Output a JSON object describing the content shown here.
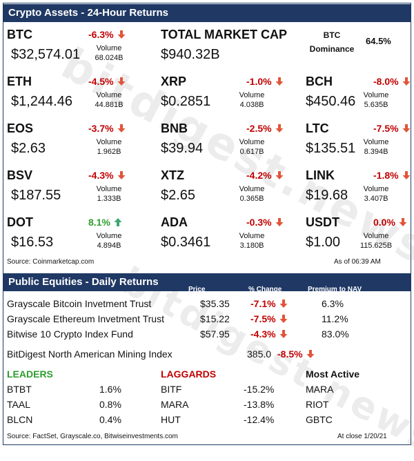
{
  "crypto": {
    "title": "Crypto Assets - 24-Hour Returns",
    "volume_label": "Volume",
    "colors": {
      "negative": "#c00000",
      "positive": "#2e9c2e",
      "band": "#1f3864"
    },
    "assets": [
      {
        "symbol": "BTC",
        "change": "-6.3%",
        "direction": "down",
        "price": "$32,574.01",
        "volume": "68.024B"
      },
      {
        "symbol": "ETH",
        "change": "-4.5%",
        "direction": "down",
        "price": "$1,244.46",
        "volume": "44.881B"
      },
      {
        "symbol": "XRP",
        "change": "-1.0%",
        "direction": "down",
        "price": "$0.2851",
        "volume": "4.038B"
      },
      {
        "symbol": "BCH",
        "change": "-8.0%",
        "direction": "down",
        "price": "$450.46",
        "volume": "5.635B"
      },
      {
        "symbol": "EOS",
        "change": "-3.7%",
        "direction": "down",
        "price": "$2.63",
        "volume": "1.962B"
      },
      {
        "symbol": "BNB",
        "change": "-2.5%",
        "direction": "down",
        "price": "$39.94",
        "volume": "0.617B"
      },
      {
        "symbol": "LTC",
        "change": "-7.5%",
        "direction": "down",
        "price": "$135.51",
        "volume": "8.394B"
      },
      {
        "symbol": "BSV",
        "change": "-4.3%",
        "direction": "down",
        "price": "$187.55",
        "volume": "1.333B"
      },
      {
        "symbol": "XTZ",
        "change": "-4.2%",
        "direction": "down",
        "price": "$2.65",
        "volume": "0.365B"
      },
      {
        "symbol": "LINK",
        "change": "-1.8%",
        "direction": "down",
        "price": "$19.68",
        "volume": "3.407B"
      },
      {
        "symbol": "DOT",
        "change": "8.1%",
        "direction": "up",
        "price": "$16.53",
        "volume": "4.894B"
      },
      {
        "symbol": "ADA",
        "change": "-0.3%",
        "direction": "down",
        "price": "$0.3461",
        "volume": "3.180B"
      },
      {
        "symbol": "USDT",
        "change": "0.0%",
        "direction": "down",
        "price": "$1.00",
        "volume": "115.625B"
      }
    ],
    "total_market_cap_label": "TOTAL MARKET CAP",
    "total_market_cap": "$940.32B",
    "btc_label": "BTC",
    "dominance_label": "Dominance",
    "btc_dominance": "64.5%",
    "source": "Source: Coinmarketcap.com",
    "as_of": "As of 06:39 AM"
  },
  "equities": {
    "title": "Public Equities - Daily Returns",
    "col_price": "Price",
    "col_change": "% Change",
    "col_premium": "Premium to NAV",
    "funds": [
      {
        "name": "Grayscale Bitcoin Invetment Trust",
        "price": "$35.35",
        "change": "-7.1%",
        "premium": "6.3%"
      },
      {
        "name": "Grayscale Ethereum Invetment Trust",
        "price": "$15.22",
        "change": "-7.5%",
        "premium": "11.2%"
      },
      {
        "name": "Bitwise 10 Crypto Index Fund",
        "price": "$57.95",
        "change": "-4.3%",
        "premium": "83.0%"
      }
    ],
    "index_name": "BitDigest North American Mining Index",
    "index_value": "385.0",
    "index_change": "-8.5%",
    "leaders_label": "LEADERS",
    "laggards_label": "LAGGARDS",
    "most_active_label": "Most Active",
    "leaders": [
      {
        "t": "BTBT",
        "v": "1.6%"
      },
      {
        "t": "TAAL",
        "v": "0.8%"
      },
      {
        "t": "BLCN",
        "v": "0.4%"
      }
    ],
    "laggards": [
      {
        "t": "BITF",
        "v": "-15.2%"
      },
      {
        "t": "MARA",
        "v": "-13.8%"
      },
      {
        "t": "HUT",
        "v": "-12.4%"
      }
    ],
    "most_active": [
      "MARA",
      "RIOT",
      "GBTC"
    ],
    "source": "Source: FactSet, Grayscale.co, Bitwiseinvestments.com",
    "close": "At close 1/20/21"
  },
  "watermark": "bitdigest.news"
}
